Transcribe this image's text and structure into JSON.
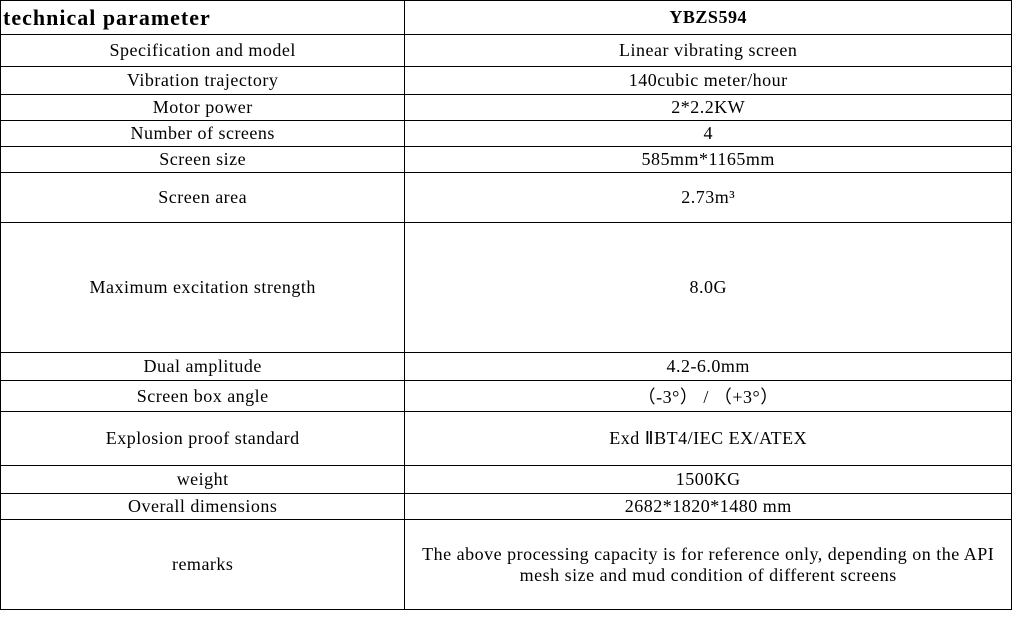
{
  "table": {
    "header": {
      "left": "technical parameter",
      "right": "YBZS594"
    },
    "rows": [
      {
        "label": "Specification and model",
        "value": "Linear vibrating screen",
        "heightClass": "h-32"
      },
      {
        "label": "Vibration trajectory",
        "value": "140cubic meter/hour",
        "heightClass": "h-28"
      },
      {
        "label": "Motor power",
        "value": "2*2.2KW",
        "heightClass": "h-26"
      },
      {
        "label": "Number of screens",
        "value": "4",
        "heightClass": "h-26"
      },
      {
        "label": "Screen size",
        "value": "585mm*1165mm",
        "heightClass": "h-26"
      },
      {
        "label": "Screen area",
        "value": "2.73m³",
        "heightClass": "h-50"
      },
      {
        "label": "Maximum excitation strength",
        "value": "8.0G",
        "heightClass": "h-130"
      },
      {
        "label": "Dual amplitude",
        "value": "4.2-6.0mm",
        "heightClass": "h-28"
      },
      {
        "label": "Screen box angle",
        "value": "（-3°） / （+3°）",
        "heightClass": "h-26"
      },
      {
        "label": "Explosion proof standard",
        "value": "Exd ⅡBT4/IEC EX/ATEX",
        "heightClass": "h-54"
      },
      {
        "label": "weight",
        "value": "1500KG",
        "heightClass": "h-28"
      },
      {
        "label": "Overall dimensions",
        "value": "2682*1820*1480 mm",
        "heightClass": "h-26"
      },
      {
        "label": "remarks",
        "value": "The above processing capacity is for reference only, depending on the API mesh size and mud condition of different screens",
        "heightClass": "h-90"
      }
    ]
  },
  "style": {
    "font_family": "SimSun",
    "border_color": "#000000",
    "background_color": "#ffffff",
    "header_fontsize": 22,
    "body_fontsize": 18,
    "col_left_width_pct": 40,
    "col_right_width_pct": 60
  }
}
